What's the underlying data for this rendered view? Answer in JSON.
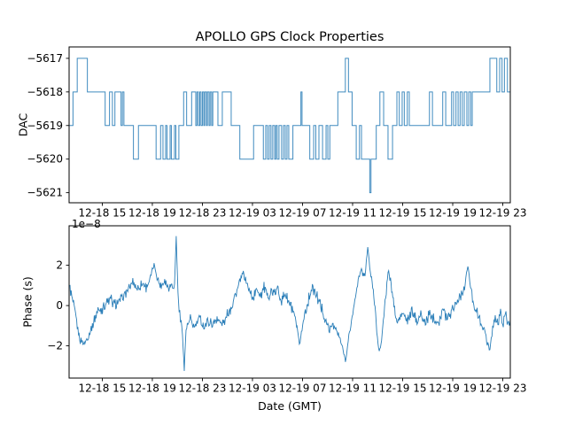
{
  "figure": {
    "title": "APOLLO GPS Clock Properties",
    "xlabel": "Date (GMT)",
    "line_color": "#1f77b4",
    "axis_color": "#000000",
    "background": "#ffffff"
  },
  "chart_data": [
    {
      "type": "line",
      "style": "steps-post",
      "name": "DAC",
      "ylabel": "DAC",
      "x_unit": "hours since 12-18 00:00 GMT",
      "xlim": [
        12.35,
        47.6
      ],
      "ylim": [
        -5621.3,
        -5616.66
      ],
      "yticks": [
        -5617,
        -5618,
        -5619,
        -5620,
        -5621
      ],
      "ytick_labels": [
        "−5617",
        "−5618",
        "−5619",
        "−5620",
        "−5621"
      ],
      "xticks": [
        15,
        19,
        23,
        27,
        31,
        35,
        39,
        43,
        47
      ],
      "xtick_labels": [
        "12-18 15",
        "12-18 19",
        "12-18 23",
        "12-19 03",
        "12-19 07",
        "12-19 11",
        "12-19 15",
        "12-19 19",
        "12-19 23"
      ],
      "grid": false,
      "legend": "none",
      "steps": [
        [
          12.35,
          -5619
        ],
        [
          12.66,
          -5618
        ],
        [
          13.0,
          -5617
        ],
        [
          13.81,
          -5618
        ],
        [
          15.23,
          -5619
        ],
        [
          15.58,
          -5618
        ],
        [
          15.81,
          -5619
        ],
        [
          16.01,
          -5618
        ],
        [
          16.5,
          -5619
        ],
        [
          16.61,
          -5618
        ],
        [
          16.73,
          -5619
        ],
        [
          17.49,
          -5620
        ],
        [
          17.89,
          -5619
        ],
        [
          19.3,
          -5620
        ],
        [
          19.66,
          -5619
        ],
        [
          19.85,
          -5620
        ],
        [
          20.06,
          -5619
        ],
        [
          20.17,
          -5620
        ],
        [
          20.42,
          -5619
        ],
        [
          20.52,
          -5620
        ],
        [
          20.77,
          -5619
        ],
        [
          20.88,
          -5620
        ],
        [
          21.12,
          -5619
        ],
        [
          21.5,
          -5618
        ],
        [
          21.74,
          -5619
        ],
        [
          22.14,
          -5618
        ],
        [
          22.47,
          -5619
        ],
        [
          22.57,
          -5618
        ],
        [
          22.68,
          -5619
        ],
        [
          22.79,
          -5618
        ],
        [
          22.89,
          -5619
        ],
        [
          23.0,
          -5618
        ],
        [
          23.11,
          -5619
        ],
        [
          23.19,
          -5618
        ],
        [
          23.32,
          -5619
        ],
        [
          23.4,
          -5618
        ],
        [
          23.53,
          -5619
        ],
        [
          23.62,
          -5618
        ],
        [
          23.74,
          -5619
        ],
        [
          23.83,
          -5618
        ],
        [
          24.24,
          -5619
        ],
        [
          24.59,
          -5618
        ],
        [
          25.3,
          -5619
        ],
        [
          25.99,
          -5620
        ],
        [
          27.09,
          -5619
        ],
        [
          27.87,
          -5620
        ],
        [
          28.06,
          -5619
        ],
        [
          28.2,
          -5620
        ],
        [
          28.34,
          -5619
        ],
        [
          28.48,
          -5620
        ],
        [
          28.62,
          -5619
        ],
        [
          28.77,
          -5620
        ],
        [
          28.87,
          -5619
        ],
        [
          28.98,
          -5620
        ],
        [
          29.12,
          -5619
        ],
        [
          29.33,
          -5620
        ],
        [
          29.48,
          -5619
        ],
        [
          29.62,
          -5620
        ],
        [
          29.76,
          -5619
        ],
        [
          29.9,
          -5620
        ],
        [
          30.23,
          -5619
        ],
        [
          30.87,
          -5618
        ],
        [
          30.96,
          -5619
        ],
        [
          31.58,
          -5620
        ],
        [
          31.89,
          -5619
        ],
        [
          32.06,
          -5620
        ],
        [
          32.31,
          -5619
        ],
        [
          32.6,
          -5620
        ],
        [
          32.88,
          -5619
        ],
        [
          33.02,
          -5620
        ],
        [
          33.18,
          -5619
        ],
        [
          33.82,
          -5618
        ],
        [
          34.42,
          -5617
        ],
        [
          34.67,
          -5618
        ],
        [
          34.96,
          -5619
        ],
        [
          35.29,
          -5620
        ],
        [
          35.55,
          -5619
        ],
        [
          35.71,
          -5620
        ],
        [
          36.37,
          -5621
        ],
        [
          36.47,
          -5620
        ],
        [
          36.89,
          -5619
        ],
        [
          37.18,
          -5618
        ],
        [
          37.48,
          -5619
        ],
        [
          37.83,
          -5620
        ],
        [
          38.19,
          -5619
        ],
        [
          38.54,
          -5618
        ],
        [
          38.73,
          -5619
        ],
        [
          38.96,
          -5618
        ],
        [
          39.13,
          -5619
        ],
        [
          39.37,
          -5618
        ],
        [
          39.53,
          -5619
        ],
        [
          41.14,
          -5618
        ],
        [
          41.38,
          -5619
        ],
        [
          42.2,
          -5618
        ],
        [
          42.44,
          -5619
        ],
        [
          42.91,
          -5618
        ],
        [
          43.07,
          -5619
        ],
        [
          43.26,
          -5618
        ],
        [
          43.43,
          -5619
        ],
        [
          43.59,
          -5618
        ],
        [
          43.76,
          -5619
        ],
        [
          43.92,
          -5618
        ],
        [
          44.13,
          -5619
        ],
        [
          44.28,
          -5618
        ],
        [
          44.44,
          -5619
        ],
        [
          44.56,
          -5618
        ],
        [
          45.97,
          -5617
        ],
        [
          46.52,
          -5618
        ],
        [
          46.75,
          -5617
        ],
        [
          46.94,
          -5618
        ],
        [
          47.13,
          -5617
        ],
        [
          47.37,
          -5618
        ]
      ]
    },
    {
      "type": "line",
      "style": "noisy",
      "name": "Phase",
      "ylabel": "Phase (s)",
      "offset_label": "1e−8",
      "x_unit": "hours since 12-18 00:00 GMT",
      "y_scale_factor": "1e-8",
      "xlim": [
        12.35,
        47.6
      ],
      "ylim_1e8": [
        -3.6,
        3.96
      ],
      "yticks_1e8": [
        2,
        0,
        -2
      ],
      "ytick_labels": [
        "2",
        "0",
        "−2"
      ],
      "xticks": [
        15,
        19,
        23,
        27,
        31,
        35,
        39,
        43,
        47
      ],
      "xtick_labels": [
        "12-18 15",
        "12-18 19",
        "12-18 23",
        "12-19 03",
        "12-19 07",
        "12-19 11",
        "12-19 15",
        "12-19 19",
        "12-19 23"
      ],
      "grid": false,
      "legend": "none",
      "noise_amplitude_1e8": 0.38,
      "noise_density_per_hour": 20,
      "points_1e8": [
        [
          12.42,
          0.9
        ],
        [
          12.85,
          -0.5
        ],
        [
          13.2,
          -1.7
        ],
        [
          13.56,
          -1.9
        ],
        [
          13.91,
          -1.5
        ],
        [
          14.26,
          -0.9
        ],
        [
          14.61,
          -0.3
        ],
        [
          14.96,
          -0.1
        ],
        [
          15.32,
          0.1
        ],
        [
          15.67,
          0.3
        ],
        [
          16.03,
          0
        ],
        [
          16.38,
          0.2
        ],
        [
          16.73,
          0.5
        ],
        [
          17.09,
          0.8
        ],
        [
          17.44,
          1.2
        ],
        [
          17.8,
          0.8
        ],
        [
          18.15,
          1.1
        ],
        [
          18.5,
          0.9
        ],
        [
          18.86,
          1.4
        ],
        [
          19.14,
          2.0
        ],
        [
          19.43,
          1.3
        ],
        [
          19.71,
          1.0
        ],
        [
          19.99,
          1.3
        ],
        [
          20.27,
          0.9
        ],
        [
          20.56,
          1.1
        ],
        [
          20.77,
          1.0
        ],
        [
          20.91,
          3.45
        ],
        [
          21.05,
          0.5
        ],
        [
          21.19,
          -0.5
        ],
        [
          21.41,
          -1.3
        ],
        [
          21.55,
          -3.25
        ],
        [
          21.69,
          -1.2
        ],
        [
          22.04,
          -0.7
        ],
        [
          22.4,
          -1.1
        ],
        [
          22.75,
          -0.6
        ],
        [
          23.11,
          -1.0
        ],
        [
          23.46,
          -0.8
        ],
        [
          23.81,
          -0.9
        ],
        [
          24.17,
          -0.6
        ],
        [
          24.52,
          -0.9
        ],
        [
          24.88,
          -0.7
        ],
        [
          25.09,
          -0.3
        ],
        [
          25.37,
          0
        ],
        [
          25.66,
          0.6
        ],
        [
          25.94,
          1.1
        ],
        [
          26.22,
          1.6
        ],
        [
          26.5,
          1.2
        ],
        [
          26.79,
          0.7
        ],
        [
          27.07,
          0.4
        ],
        [
          27.35,
          0.8
        ],
        [
          27.64,
          0.5
        ],
        [
          27.92,
          0.9
        ],
        [
          28.2,
          0.4
        ],
        [
          28.48,
          0.7
        ],
        [
          28.77,
          0.6
        ],
        [
          29.05,
          0.8
        ],
        [
          29.33,
          0.3
        ],
        [
          29.62,
          0.6
        ],
        [
          29.9,
          0.2
        ],
        [
          30.18,
          -0.2
        ],
        [
          30.47,
          -0.9
        ],
        [
          30.75,
          -1.9
        ],
        [
          30.96,
          -1.2
        ],
        [
          31.17,
          -0.4
        ],
        [
          31.46,
          0.2
        ],
        [
          31.74,
          0.9
        ],
        [
          32.03,
          0.6
        ],
        [
          32.31,
          0.2
        ],
        [
          32.6,
          -0.3
        ],
        [
          32.88,
          -0.8
        ],
        [
          33.16,
          -1.2
        ],
        [
          33.44,
          -0.9
        ],
        [
          33.72,
          -1.3
        ],
        [
          34.01,
          -1.7
        ],
        [
          34.29,
          -2.3
        ],
        [
          34.43,
          -2.8
        ],
        [
          34.65,
          -1.8
        ],
        [
          34.86,
          -0.9
        ],
        [
          35.07,
          -0.2
        ],
        [
          35.29,
          0.8
        ],
        [
          35.5,
          1.4
        ],
        [
          35.71,
          1.7
        ],
        [
          35.99,
          1.5
        ],
        [
          36.21,
          2.9
        ],
        [
          36.42,
          1.6
        ],
        [
          36.56,
          1.2
        ],
        [
          36.7,
          0.4
        ],
        [
          36.84,
          -0.6
        ],
        [
          36.98,
          -1.6
        ],
        [
          37.13,
          -2.3
        ],
        [
          37.27,
          -1.9
        ],
        [
          37.41,
          -1.0
        ],
        [
          37.55,
          -0.2
        ],
        [
          37.69,
          0.8
        ],
        [
          37.83,
          1.6
        ],
        [
          37.98,
          1.4
        ],
        [
          38.12,
          0.9
        ],
        [
          38.26,
          0.2
        ],
        [
          38.4,
          -0.4
        ],
        [
          38.54,
          -0.9
        ],
        [
          38.68,
          -0.7
        ],
        [
          39.04,
          -0.4
        ],
        [
          39.39,
          -0.8
        ],
        [
          39.74,
          -0.3
        ],
        [
          40.1,
          -0.7
        ],
        [
          40.45,
          -0.5
        ],
        [
          40.81,
          -0.9
        ],
        [
          41.16,
          -0.4
        ],
        [
          41.51,
          -0.6
        ],
        [
          41.87,
          -0.8
        ],
        [
          42.22,
          -0.3
        ],
        [
          42.58,
          -0.6
        ],
        [
          42.93,
          -0.2
        ],
        [
          43.28,
          0.2
        ],
        [
          43.64,
          0.5
        ],
        [
          43.99,
          1.0
        ],
        [
          44.21,
          2.0
        ],
        [
          44.42,
          0.9
        ],
        [
          44.63,
          0.3
        ],
        [
          44.84,
          -0.2
        ],
        [
          45.06,
          -0.6
        ],
        [
          45.41,
          -1.0
        ],
        [
          45.76,
          -1.8
        ],
        [
          45.97,
          -2.2
        ],
        [
          46.19,
          -1.1
        ],
        [
          46.4,
          -0.6
        ],
        [
          46.61,
          -0.9
        ],
        [
          46.82,
          -0.4
        ],
        [
          47.04,
          -0.8
        ],
        [
          47.25,
          -0.5
        ],
        [
          47.46,
          -0.9
        ],
        [
          47.6,
          -0.7
        ]
      ]
    }
  ]
}
